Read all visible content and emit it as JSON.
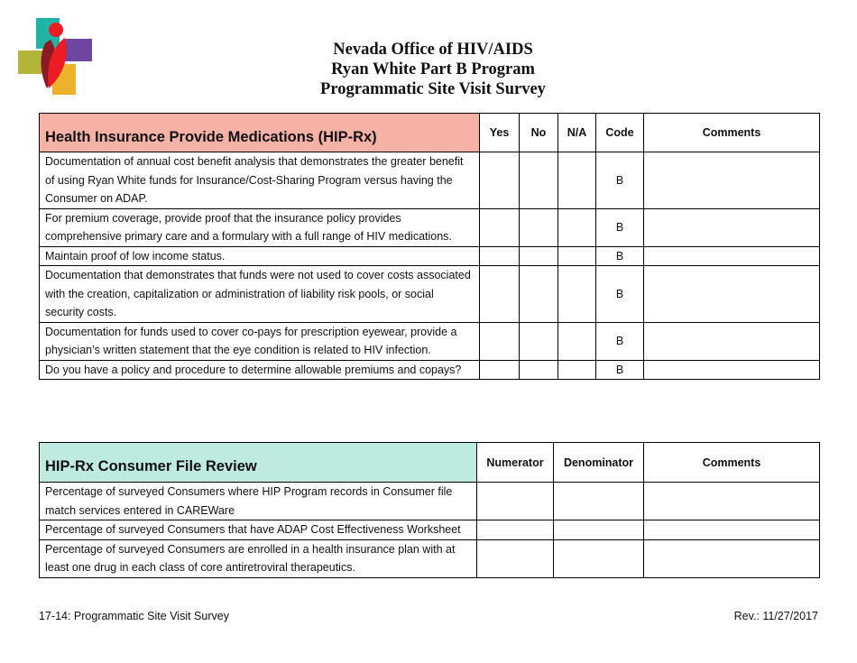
{
  "header": {
    "title_lines": [
      "Nevada Office of HIV/AIDS",
      "Ryan White Part B Program",
      "Programmatic Site Visit Survey"
    ]
  },
  "colors": {
    "section1_header": "#f7b2a7",
    "section2_header": "#bfeadf"
  },
  "section1": {
    "title": "Health Insurance Provide Medications (HIP-Rx)",
    "columns": [
      "Yes",
      "No",
      "N/A",
      "Code",
      "Comments"
    ],
    "rows": [
      {
        "text": "Documentation of annual cost benefit analysis that demonstrates the greater benefit of using Ryan White funds for Insurance/Cost-Sharing Program versus having the Consumer on ADAP.",
        "code": "B"
      },
      {
        "text": "For premium coverage, provide proof that the insurance policy provides comprehensive primary care and a formulary with a full range of HIV medications.",
        "code": "B"
      },
      {
        "text": "Maintain proof of low income status.",
        "code": "B"
      },
      {
        "text": "Documentation that demonstrates that funds were not used to cover costs associated with the creation, capitalization or administration of liability risk pools, or social security costs.",
        "code": "B"
      },
      {
        "text": "Documentation for funds used to cover co-pays for prescription eyewear, provide a physician’s written statement that the eye condition is related to HIV infection.",
        "code": "B"
      },
      {
        "text": "Do you have a policy and procedure to determine allowable premiums and copays?",
        "code": "B"
      }
    ]
  },
  "section2": {
    "title": "HIP-Rx Consumer File Review",
    "columns": [
      "Numerator",
      "Denominator",
      "Comments"
    ],
    "rows": [
      {
        "text": "Percentage of surveyed Consumers where HIP Program records in Consumer file match services entered in CAREWare"
      },
      {
        "text": "Percentage of surveyed Consumers that have ADAP Cost Effectiveness Worksheet"
      },
      {
        "text": "Percentage of surveyed Consumers are enrolled in a health insurance plan with at least one drug in each class of core antiretroviral therapeutics."
      }
    ]
  },
  "footer": {
    "left": "17-14: Programmatic Site Visit Survey",
    "right": "Rev.: 11/27/2017"
  }
}
